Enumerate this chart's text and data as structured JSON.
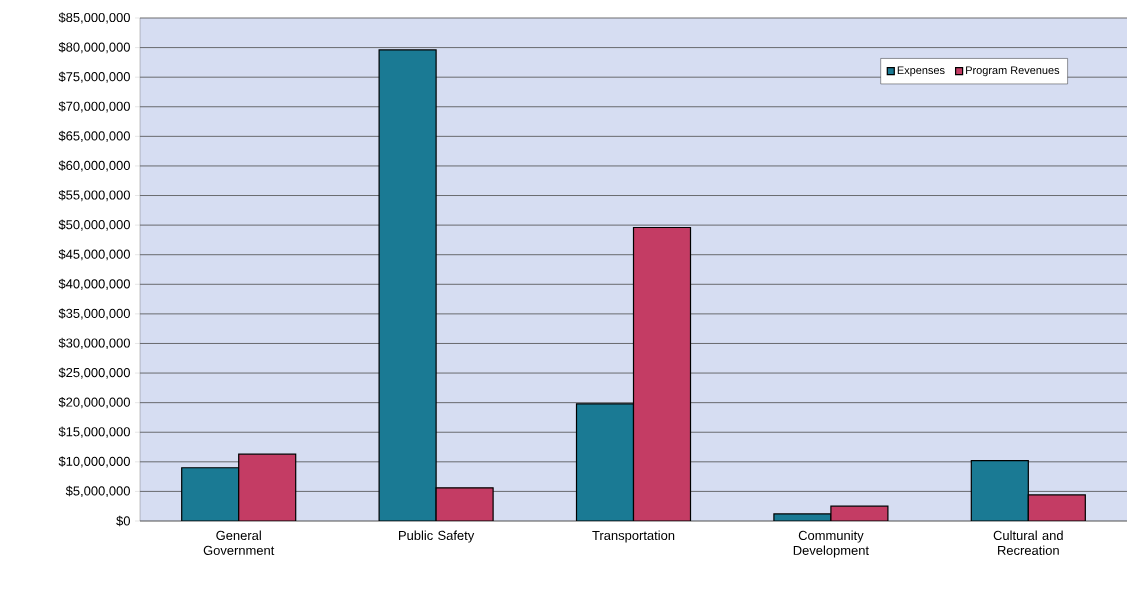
{
  "chart_data": {
    "type": "bar",
    "categories": [
      "General Government",
      "Public Safety",
      "Transportation",
      "Community Development",
      "Cultural and Recreation"
    ],
    "series": [
      {
        "name": "Expenses",
        "color": "#1a7a94",
        "values": [
          9000000,
          79600000,
          19800000,
          1200000,
          10200000
        ]
      },
      {
        "name": "Program Revenues",
        "color": "#c43c64",
        "values": [
          11300000,
          5600000,
          49600000,
          2500000,
          4400000
        ]
      }
    ],
    "ylim": [
      0,
      85000000
    ],
    "yticks": [
      {
        "value": 0,
        "label": "$0"
      },
      {
        "value": 5000000,
        "label": "$5,000,000"
      },
      {
        "value": 10000000,
        "label": "$10,000,000"
      },
      {
        "value": 15000000,
        "label": "$15,000,000"
      },
      {
        "value": 20000000,
        "label": "$20,000,000"
      },
      {
        "value": 25000000,
        "label": "$25,000,000"
      },
      {
        "value": 30000000,
        "label": "$30,000,000"
      },
      {
        "value": 35000000,
        "label": "$35,000,000"
      },
      {
        "value": 40000000,
        "label": "$40,000,000"
      },
      {
        "value": 45000000,
        "label": "$45,000,000"
      },
      {
        "value": 50000000,
        "label": "$50,000,000"
      },
      {
        "value": 55000000,
        "label": "$55,000,000"
      },
      {
        "value": 60000000,
        "label": "$60,000,000"
      },
      {
        "value": 65000000,
        "label": "$65,000,000"
      },
      {
        "value": 70000000,
        "label": "$70,000,000"
      },
      {
        "value": 75000000,
        "label": "$75,000,000"
      },
      {
        "value": 80000000,
        "label": "$80,000,000"
      },
      {
        "value": 85000000,
        "label": "$85,000,000"
      }
    ],
    "grid": "y",
    "legend": "top right"
  }
}
